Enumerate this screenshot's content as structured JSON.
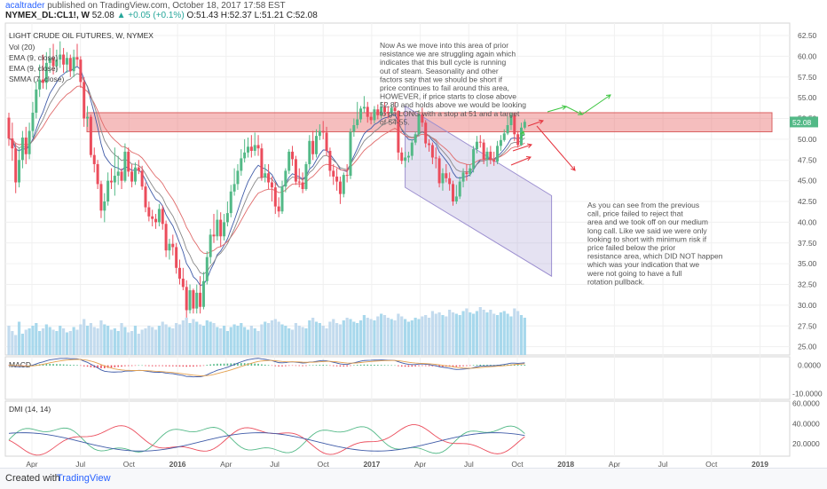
{
  "header": {
    "author": "acaltrader",
    "published": "published on TradingView.com, October 18, 2017 17:58 EST",
    "symbol": "NYMEX_DL:CL1!, W",
    "price": "52.08",
    "change": "+0.05 (+0.1%)",
    "ohlc": "O:51.43 H:52.37 L:51.21 C:52.08"
  },
  "footer": {
    "created": "Created with",
    "brand": "TradingView"
  },
  "chart_data": {
    "type": "candlestick",
    "title": "LIGHT CRUDE OIL FUTURES, W, NYMEX",
    "legend": [
      "Vol (20)",
      "EMA (9, close)",
      "EMA (9, close)",
      "SMMA (7, close)"
    ],
    "price_axis": {
      "ylim": [
        24,
        64
      ],
      "ticks": [
        "62.50",
        "60.00",
        "57.50",
        "55.00",
        "52.50",
        "50.00",
        "47.50",
        "45.00",
        "42.50",
        "40.00",
        "37.50",
        "35.00",
        "32.50",
        "30.00",
        "27.50",
        "25.00"
      ]
    },
    "last_price": "52.08",
    "x_ticks": [
      "Apr",
      "Jul",
      "Oct",
      "2016",
      "Apr",
      "Jul",
      "Oct",
      "2017",
      "Apr",
      "Jul",
      "Oct",
      "2018",
      "Apr",
      "Jul",
      "Oct",
      "2019"
    ],
    "x_ticks_bold": [
      "2016",
      "2017",
      "2018",
      "2019"
    ],
    "candles": [
      [
        52.6,
        50.1,
        53.2,
        49.2
      ],
      [
        50.1,
        48.9,
        52.0,
        47.4
      ],
      [
        48.9,
        44.8,
        49.5,
        43.5
      ],
      [
        44.8,
        47.5,
        49.0,
        44.2
      ],
      [
        47.5,
        50.2,
        51.0,
        46.5
      ],
      [
        50.2,
        48.2,
        51.5,
        47.0
      ],
      [
        48.2,
        51.0,
        52.0,
        47.6
      ],
      [
        51.0,
        53.2,
        54.5,
        50.2
      ],
      [
        53.2,
        56.0,
        57.0,
        52.5
      ],
      [
        56.0,
        57.2,
        59.0,
        55.1
      ],
      [
        57.2,
        56.8,
        60.2,
        56.1
      ],
      [
        56.8,
        59.2,
        60.5,
        56.0
      ],
      [
        59.2,
        59.8,
        61.0,
        58.0
      ],
      [
        59.8,
        58.8,
        61.5,
        57.8
      ],
      [
        58.8,
        59.6,
        60.8,
        58.1
      ],
      [
        59.6,
        60.2,
        61.8,
        58.6
      ],
      [
        60.2,
        59.0,
        61.0,
        58.0
      ],
      [
        59.0,
        59.8,
        60.5,
        58.0
      ],
      [
        59.8,
        58.2,
        60.2,
        57.5
      ],
      [
        58.2,
        59.9,
        60.8,
        57.5
      ],
      [
        59.9,
        59.6,
        61.5,
        58.8
      ],
      [
        59.6,
        56.9,
        60.0,
        56.2
      ],
      [
        56.9,
        52.5,
        57.5,
        51.5
      ],
      [
        52.5,
        52.7,
        54.0,
        51.5
      ],
      [
        52.7,
        48.1,
        53.0,
        47.8
      ],
      [
        48.1,
        47.0,
        49.0,
        46.0
      ],
      [
        47.0,
        44.6,
        47.5,
        44.0
      ],
      [
        44.6,
        41.4,
        45.0,
        40.5
      ],
      [
        41.4,
        42.5,
        43.5,
        40.0
      ],
      [
        42.5,
        45.0,
        46.0,
        42.0
      ],
      [
        45.0,
        44.8,
        46.5,
        44.0
      ],
      [
        44.8,
        45.6,
        49.0,
        43.2
      ],
      [
        45.6,
        46.1,
        48.0,
        44.5
      ],
      [
        46.1,
        45.0,
        46.5,
        44.0
      ],
      [
        45.0,
        48.5,
        49.5,
        44.8
      ],
      [
        48.5,
        46.1,
        49.0,
        45.5
      ],
      [
        46.1,
        44.9,
        47.0,
        44.2
      ],
      [
        44.9,
        46.6,
        47.2,
        44.5
      ],
      [
        46.6,
        46.2,
        47.5,
        45.8
      ],
      [
        46.2,
        44.3,
        46.8,
        43.9
      ],
      [
        44.3,
        41.8,
        44.8,
        41.2
      ],
      [
        41.8,
        40.7,
        42.5,
        40.1
      ],
      [
        40.7,
        40.4,
        41.5,
        39.5
      ],
      [
        40.4,
        40.0,
        41.0,
        39.2
      ],
      [
        40.0,
        41.6,
        42.2,
        39.5
      ],
      [
        41.6,
        39.8,
        42.0,
        39.1
      ],
      [
        39.8,
        36.6,
        40.2,
        35.8
      ],
      [
        36.6,
        37.4,
        38.0,
        35.5
      ],
      [
        37.4,
        37.0,
        38.5,
        36.0
      ],
      [
        37.0,
        34.5,
        37.5,
        33.8
      ],
      [
        34.5,
        33.2,
        35.5,
        32.5
      ],
      [
        33.2,
        32.2,
        34.5,
        31.8
      ],
      [
        32.2,
        29.4,
        33.0,
        28.5
      ],
      [
        29.4,
        31.8,
        32.5,
        29.0
      ],
      [
        31.8,
        29.6,
        32.0,
        29.0
      ],
      [
        29.6,
        31.5,
        32.5,
        29.0
      ],
      [
        31.5,
        29.8,
        33.5,
        29.0
      ],
      [
        29.8,
        32.9,
        34.0,
        29.5
      ],
      [
        32.9,
        35.8,
        36.5,
        32.5
      ],
      [
        35.8,
        38.5,
        39.2,
        35.0
      ],
      [
        38.5,
        38.3,
        41.0,
        37.5
      ],
      [
        38.3,
        40.3,
        41.5,
        37.8
      ],
      [
        40.3,
        38.3,
        41.2,
        37.0
      ],
      [
        38.3,
        40.0,
        41.0,
        37.8
      ],
      [
        40.0,
        41.1,
        42.5,
        39.5
      ],
      [
        41.1,
        43.7,
        44.5,
        40.6
      ],
      [
        43.7,
        44.6,
        46.5,
        43.2
      ],
      [
        44.6,
        46.2,
        47.0,
        43.9
      ],
      [
        46.2,
        47.7,
        48.8,
        45.6
      ],
      [
        47.7,
        48.4,
        50.0,
        47.2
      ],
      [
        48.4,
        49.1,
        50.2,
        47.8
      ],
      [
        49.1,
        48.6,
        50.5,
        47.8
      ],
      [
        48.6,
        49.3,
        50.8,
        48.0
      ],
      [
        49.3,
        48.9,
        50.5,
        48.0
      ],
      [
        48.9,
        45.4,
        49.5,
        45.0
      ],
      [
        45.4,
        45.9,
        47.0,
        44.8
      ],
      [
        45.9,
        44.8,
        47.0,
        44.0
      ],
      [
        44.8,
        44.2,
        45.5,
        42.5
      ],
      [
        44.2,
        41.9,
        44.8,
        41.0
      ],
      [
        41.9,
        41.3,
        43.0,
        40.6
      ],
      [
        41.3,
        44.3,
        45.0,
        41.0
      ],
      [
        44.3,
        46.2,
        46.5,
        43.6
      ],
      [
        46.2,
        48.5,
        48.8,
        45.8
      ],
      [
        48.5,
        47.6,
        49.2,
        46.8
      ],
      [
        47.6,
        44.9,
        48.0,
        44.5
      ],
      [
        44.9,
        44.8,
        46.5,
        44.2
      ],
      [
        44.8,
        44.0,
        46.0,
        43.5
      ],
      [
        44.0,
        47.0,
        47.3,
        43.8
      ],
      [
        47.0,
        49.8,
        50.5,
        46.5
      ],
      [
        49.8,
        48.2,
        51.0,
        47.5
      ],
      [
        48.2,
        50.4,
        51.2,
        47.8
      ],
      [
        50.4,
        51.0,
        51.8,
        49.9
      ],
      [
        51.0,
        50.8,
        52.2,
        50.0
      ],
      [
        50.8,
        48.6,
        51.5,
        48.0
      ],
      [
        48.6,
        46.2,
        49.0,
        45.5
      ],
      [
        46.2,
        45.5,
        47.0,
        44.5
      ],
      [
        45.5,
        44.9,
        46.5,
        43.8
      ],
      [
        44.9,
        43.4,
        45.5,
        42.2
      ],
      [
        43.4,
        45.7,
        46.0,
        43.0
      ],
      [
        45.7,
        45.6,
        47.0,
        44.8
      ],
      [
        45.6,
        50.9,
        51.3,
        45.2
      ],
      [
        50.9,
        51.7,
        52.5,
        50.3
      ],
      [
        51.7,
        52.4,
        54.5,
        51.3
      ],
      [
        52.4,
        53.7,
        54.0,
        52.0
      ],
      [
        53.7,
        53.9,
        55.2,
        53.2
      ],
      [
        53.9,
        52.7,
        54.5,
        52.0
      ],
      [
        52.7,
        52.3,
        53.2,
        51.8
      ],
      [
        52.3,
        53.6,
        54.0,
        51.9
      ],
      [
        53.6,
        52.9,
        54.2,
        52.4
      ],
      [
        52.9,
        53.9,
        54.5,
        52.5
      ],
      [
        53.9,
        53.3,
        54.5,
        52.9
      ],
      [
        53.3,
        53.1,
        54.0,
        52.5
      ],
      [
        53.1,
        53.8,
        54.2,
        52.8
      ],
      [
        53.8,
        53.4,
        54.5,
        53.0
      ],
      [
        53.4,
        48.4,
        53.5,
        47.5
      ],
      [
        48.4,
        47.4,
        49.0,
        47.0
      ],
      [
        47.4,
        47.8,
        48.5,
        46.6
      ],
      [
        47.8,
        48.0,
        48.5,
        47.2
      ],
      [
        48.0,
        49.6,
        50.0,
        47.5
      ],
      [
        49.6,
        50.6,
        50.9,
        49.3
      ],
      [
        50.6,
        53.0,
        53.5,
        50.3
      ],
      [
        53.0,
        52.0,
        53.8,
        51.5
      ],
      [
        52.0,
        49.5,
        52.3,
        49.0
      ],
      [
        49.5,
        49.3,
        50.0,
        48.5
      ],
      [
        49.3,
        47.8,
        49.6,
        47.0
      ],
      [
        47.8,
        47.7,
        49.0,
        46.5
      ],
      [
        47.7,
        44.7,
        48.0,
        44.2
      ],
      [
        44.7,
        45.9,
        46.5,
        43.8
      ],
      [
        45.9,
        45.3,
        47.0,
        44.8
      ],
      [
        45.3,
        44.6,
        46.0,
        43.8
      ],
      [
        44.6,
        42.5,
        45.0,
        42.0
      ],
      [
        42.5,
        43.1,
        44.5,
        42.2
      ],
      [
        43.1,
        44.9,
        45.5,
        42.8
      ],
      [
        44.9,
        46.0,
        46.5,
        44.2
      ],
      [
        46.0,
        45.8,
        47.0,
        45.0
      ],
      [
        45.8,
        46.5,
        47.0,
        45.5
      ],
      [
        46.5,
        48.8,
        49.2,
        46.0
      ],
      [
        48.8,
        49.7,
        50.4,
        48.3
      ],
      [
        49.7,
        49.6,
        50.5,
        49.0
      ],
      [
        49.6,
        47.6,
        50.0,
        47.0
      ],
      [
        47.6,
        48.5,
        49.0,
        46.7
      ],
      [
        48.5,
        47.5,
        49.2,
        47.0
      ],
      [
        47.5,
        47.3,
        48.5,
        46.8
      ],
      [
        47.3,
        49.2,
        49.8,
        47.0
      ],
      [
        49.2,
        49.9,
        50.5,
        48.6
      ],
      [
        49.9,
        50.7,
        51.2,
        49.7
      ],
      [
        50.7,
        51.7,
        52.8,
        50.5
      ],
      [
        51.7,
        52.9,
        53.2,
        51.1
      ],
      [
        52.9,
        50.6,
        53.2,
        49.8
      ],
      [
        50.6,
        49.3,
        51.0,
        49.0
      ],
      [
        49.3,
        51.4,
        52.0,
        49.2
      ],
      [
        51.4,
        52.1,
        52.4,
        51.2
      ]
    ],
    "volume": [
      22,
      18,
      15,
      25,
      16,
      19,
      20,
      22,
      24,
      18,
      20,
      23,
      21,
      19,
      18,
      22,
      20,
      17,
      18,
      21,
      19,
      23,
      27,
      22,
      24,
      21,
      20,
      26,
      23,
      22,
      19,
      20,
      18,
      24,
      21,
      17,
      18,
      22,
      16,
      19,
      20,
      22,
      21,
      19,
      22,
      25,
      23,
      21,
      20,
      24,
      23,
      26,
      28,
      24,
      27,
      25,
      23,
      22,
      26,
      25,
      24,
      21,
      20,
      22,
      18,
      21,
      23,
      22,
      24,
      21,
      19,
      22,
      20,
      18,
      23,
      25,
      24,
      26,
      27,
      25,
      23,
      22,
      20,
      19,
      24,
      22,
      21,
      20,
      26,
      28,
      25,
      24,
      22,
      20,
      25,
      27,
      24,
      23,
      26,
      28,
      27,
      25,
      24,
      26,
      30,
      28,
      27,
      26,
      29,
      31,
      30,
      28,
      27,
      26,
      31,
      29,
      27,
      25,
      26,
      28,
      27,
      29,
      30,
      28,
      33,
      31,
      32,
      30,
      29,
      34,
      32,
      31,
      30,
      33,
      35,
      32,
      31,
      33,
      36,
      34,
      32,
      34,
      31,
      30,
      32,
      33,
      31,
      29,
      35,
      33,
      30,
      28
    ],
    "annotations": [
      "Now As we move into this area of prior resistance we are struggling again which indicates that this bull cycle is running out of steam. Seasonality and other factors say that we should be short if price continues to fail around this area, HOWEVER, if price starts to close above 52.80 and holds above we would be looking to go LONG with a stop at 51 and a target of 54-55.",
      "As you can see from the previous call, price failed to reject that area and we took off on our medium long call. Like we said we were only looking to short with minimum risk if price failed below the prior resistance area, which DID NOT happen which was your indication that we were not going to have a full rotation pullback."
    ],
    "zones": {
      "resistance": [
        50.9,
        53.2
      ],
      "channel": {
        "start": [
          116,
          54.0,
          44.2
        ],
        "end": [
          162,
          43.2,
          33.5
        ]
      }
    },
    "macd": {
      "label": "MACD",
      "ticks": [
        "0.0000",
        "-10.0000"
      ],
      "range": [
        -12,
        3
      ]
    },
    "dmi": {
      "label": "DMI (14, 14)",
      "ticks": [
        "60.0000",
        "40.0000",
        "20.0000"
      ],
      "range": [
        8,
        62
      ]
    }
  }
}
